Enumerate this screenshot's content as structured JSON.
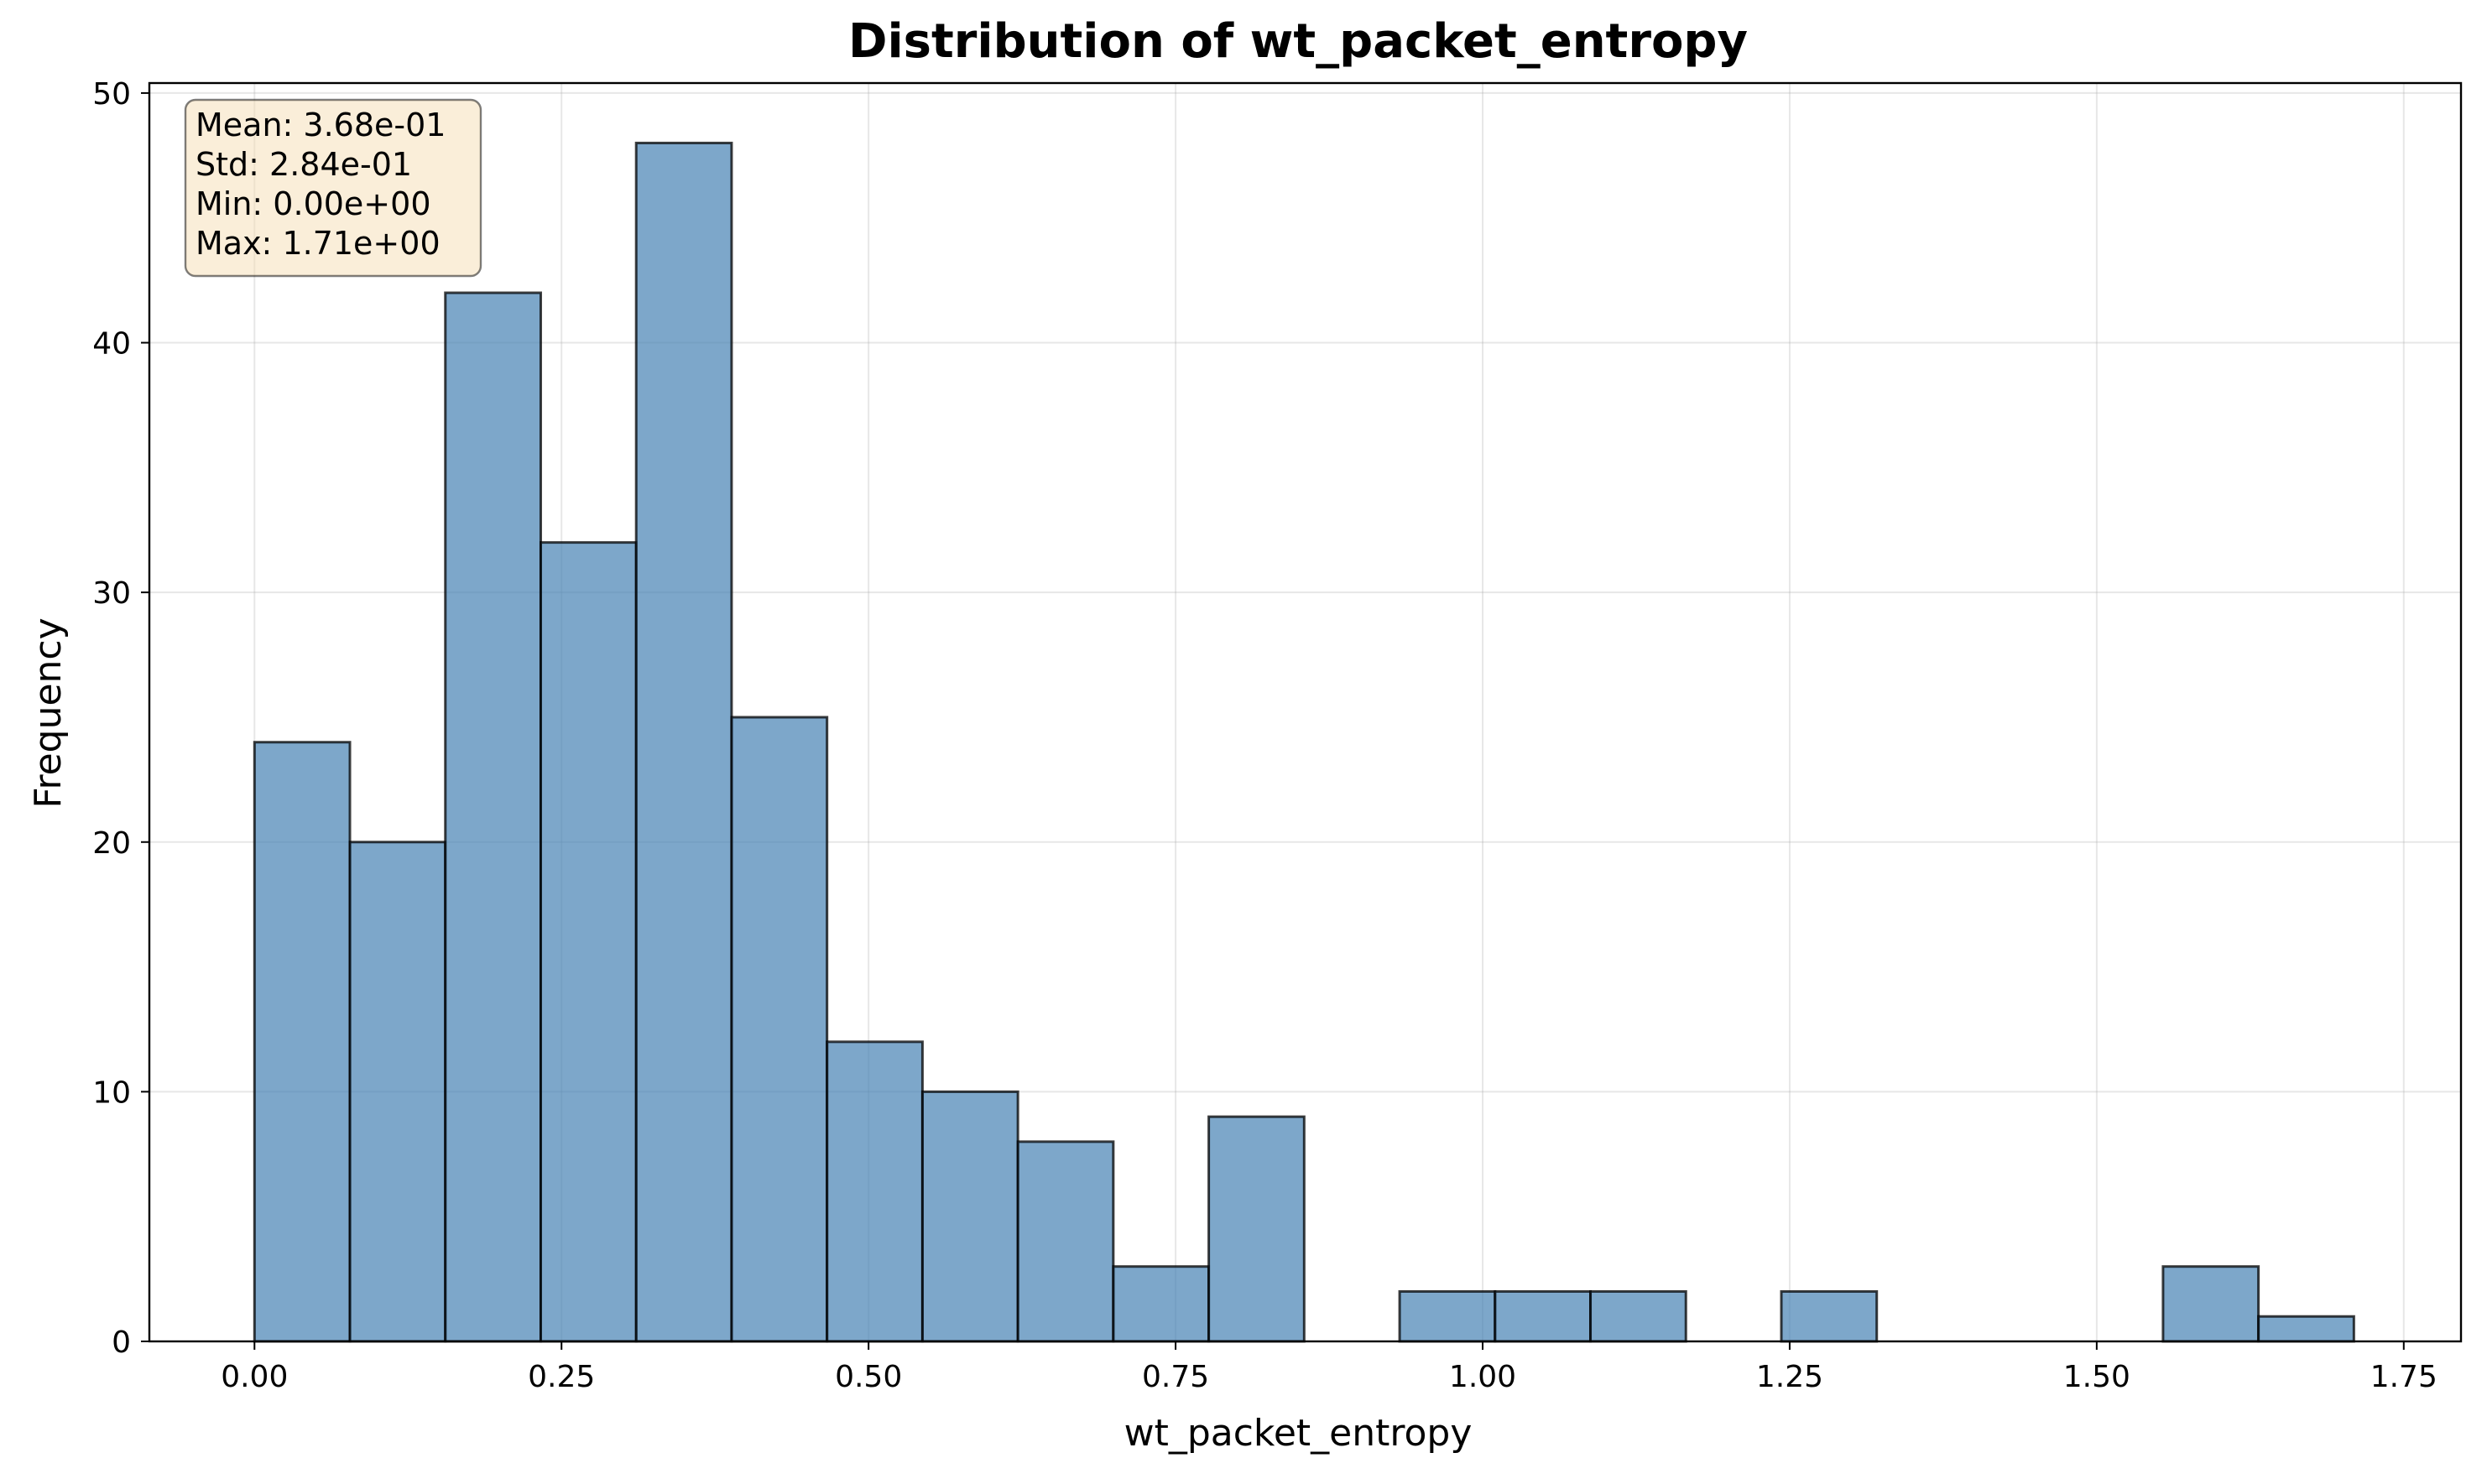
{
  "chart_data": {
    "type": "bar",
    "title": "Distribution of wt_packet_entropy",
    "xlabel": "wt_packet_entropy",
    "ylabel": "Frequency",
    "xlim": [
      -0.0856,
      1.7966
    ],
    "ylim": [
      0,
      50.4
    ],
    "xticks": [
      0.0,
      0.25,
      0.5,
      0.75,
      1.0,
      1.25,
      1.5,
      1.75
    ],
    "xtick_labels": [
      "0.00",
      "0.25",
      "0.50",
      "0.75",
      "1.00",
      "1.25",
      "1.50",
      "1.75"
    ],
    "yticks": [
      0,
      10,
      20,
      30,
      40,
      50
    ],
    "ytick_labels": [
      "0",
      "10",
      "20",
      "30",
      "40",
      "50"
    ],
    "grid": true,
    "bins": {
      "start": 0.0,
      "width": 0.0777,
      "counts": [
        24,
        20,
        42,
        32,
        48,
        25,
        12,
        10,
        8,
        3,
        9,
        0,
        2,
        2,
        2,
        0,
        2,
        0,
        0,
        0,
        3,
        1
      ]
    },
    "stats_box": {
      "position": "top-left",
      "lines": [
        "Mean: 3.68e-01",
        "Std: 2.84e-01",
        "Min: 0.00e+00",
        "Max: 1.71e+00"
      ]
    },
    "colors": {
      "bar_fill": "#4682b4",
      "bar_opacity": 0.7,
      "bar_edge": "#000000",
      "stats_box_fill": "#f5deb3",
      "grid": "#b0b0b0"
    }
  }
}
